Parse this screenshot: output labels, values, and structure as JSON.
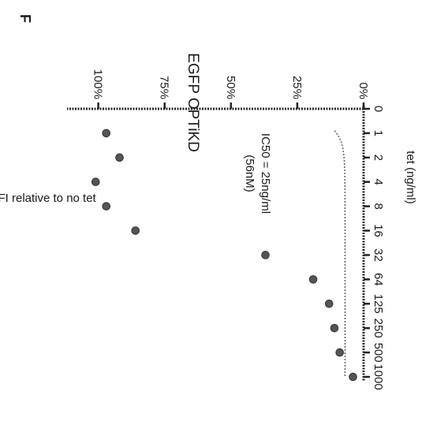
{
  "panel_label": "F",
  "chart_data": {
    "type": "scatter",
    "title": "EGFP OPTiKD",
    "xlabel": "tet (ng/ml)",
    "ylabel": "EGFP MFI relative to no tet",
    "x_tick_labels": [
      "0",
      "1",
      "2",
      "4",
      "8",
      "16",
      "32",
      "64",
      "125",
      "250",
      "500",
      "1000"
    ],
    "y_tick_labels": [
      "0%",
      "25%",
      "50%",
      "75%",
      "100%"
    ],
    "ylim": [
      0,
      110
    ],
    "annotation_line1": "IC50 = 25ng/ml",
    "annotation_line2": "(56nM)",
    "points": [
      {
        "x": "1",
        "y": 97
      },
      {
        "x": "2",
        "y": 92
      },
      {
        "x": "4",
        "y": 101
      },
      {
        "x": "8",
        "y": 97
      },
      {
        "x": "16",
        "y": 86
      },
      {
        "x": "32",
        "y": 37
      },
      {
        "x": "64",
        "y": 19
      },
      {
        "x": "125",
        "y": 13
      },
      {
        "x": "250",
        "y": 11
      },
      {
        "x": "500",
        "y": 9
      },
      {
        "x": "1000",
        "y": 4
      }
    ],
    "fit_curve": {
      "top": 97,
      "bottom": 7,
      "ic50": "25"
    },
    "grid": false,
    "legend": "none",
    "orientation": "rotated 90° clockwise",
    "colors": {
      "points": "#555555",
      "axis": "#222222",
      "curve": "#666666"
    }
  }
}
